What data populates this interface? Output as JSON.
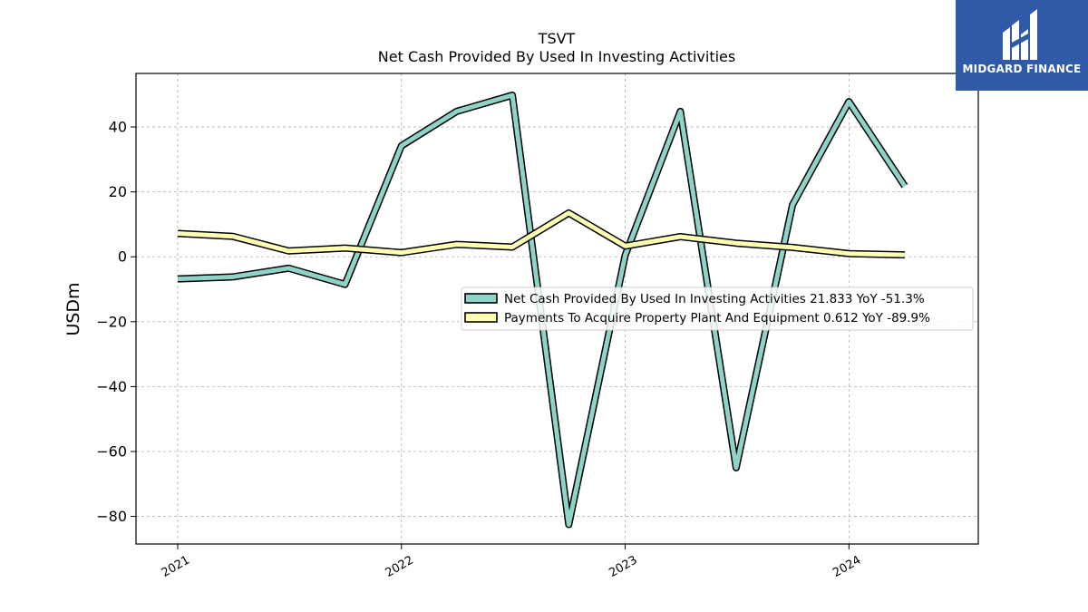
{
  "chart_data": {
    "type": "line",
    "title": "TSVT",
    "subtitle": "Net Cash Provided By Used In Investing Activities",
    "xlabel": "",
    "ylabel": "USDm",
    "xlim": [
      "2020-10-25",
      "2024-07-30"
    ],
    "ylim": [
      -88.5,
      56.5
    ],
    "y_ticks": [
      -80,
      -60,
      -40,
      -20,
      0,
      20,
      40
    ],
    "y_tick_labels": [
      "−80",
      "−60",
      "−40",
      "−20",
      "0",
      "20",
      "40"
    ],
    "x_ticks": [
      "2021-01-01",
      "2022-01-01",
      "2023-01-01",
      "2024-01-01"
    ],
    "x_tick_labels": [
      "2021",
      "2022",
      "2023",
      "2024"
    ],
    "grid": true,
    "legend_position": "center-right",
    "series": [
      {
        "name": "Net Cash Provided By Used In Investing Activities  21.833 YoY -51.3%",
        "color": "#8dd3c7",
        "x": [
          "2021-01-01",
          "2021-04-01",
          "2021-07-01",
          "2021-10-01",
          "2022-01-01",
          "2022-04-01",
          "2022-07-01",
          "2022-10-01",
          "2023-01-01",
          "2023-04-01",
          "2023-07-01",
          "2023-10-01",
          "2024-01-01",
          "2024-04-01"
        ],
        "values": [
          -6.8,
          -6.2,
          -3.5,
          -8.5,
          34.2,
          44.8,
          49.8,
          -82.5,
          0.5,
          44.8,
          -65.0,
          16.0,
          47.8,
          21.8
        ]
      },
      {
        "name": "Payments To Acquire Property Plant And Equipment  0.612 YoY -89.9%",
        "color": "#ffffb3",
        "x": [
          "2021-01-01",
          "2021-04-01",
          "2021-07-01",
          "2021-10-01",
          "2022-01-01",
          "2022-04-01",
          "2022-07-01",
          "2022-10-01",
          "2023-01-01",
          "2023-04-01",
          "2023-07-01",
          "2023-10-01",
          "2024-01-01",
          "2024-04-01"
        ],
        "values": [
          7.2,
          6.3,
          1.8,
          2.7,
          1.3,
          3.8,
          3.0,
          13.5,
          3.3,
          6.2,
          4.2,
          2.9,
          1.0,
          0.6
        ]
      }
    ]
  },
  "logo": {
    "text": "MIDGARD FINANCE",
    "background": "#2f5aa8",
    "icon": "midgard-logo-icon"
  }
}
